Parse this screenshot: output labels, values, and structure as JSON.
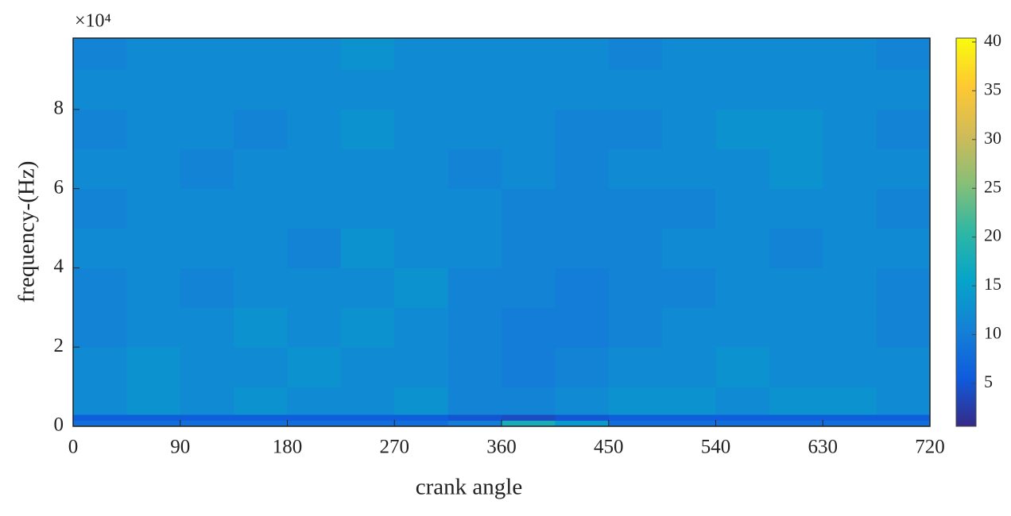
{
  "chart_data": {
    "type": "heatmap",
    "x_label": "crank angle",
    "y_label": "frequency-(Hz)",
    "y_exponent_label": "×10⁴",
    "xbins": [
      0,
      45,
      90,
      135,
      180,
      225,
      270,
      315,
      360,
      405,
      450,
      495,
      540,
      585,
      630,
      675,
      720
    ],
    "ybins": [
      0,
      1500,
      3000,
      10000,
      20000,
      30000,
      40000,
      50000,
      60000,
      70000,
      80000,
      90000,
      98000
    ],
    "z": [
      [
        8,
        8,
        8,
        8,
        8,
        8,
        8,
        10,
        18,
        14,
        8,
        8,
        8,
        8,
        8,
        8
      ],
      [
        6,
        6,
        6,
        6,
        6,
        6,
        6,
        5,
        4,
        5,
        6,
        6,
        6,
        6,
        6,
        6
      ],
      [
        12,
        13,
        12,
        13,
        12,
        12,
        13,
        11,
        11,
        12,
        13,
        13,
        12,
        13,
        13,
        12
      ],
      [
        12,
        13,
        12,
        12,
        13,
        12,
        12,
        11,
        10,
        11,
        12,
        12,
        13,
        12,
        12,
        12
      ],
      [
        11,
        12,
        12,
        13,
        12,
        13,
        12,
        11,
        10,
        10,
        11,
        12,
        12,
        12,
        12,
        11
      ],
      [
        11,
        12,
        11,
        12,
        12,
        12,
        13,
        11,
        11,
        10,
        11,
        11,
        12,
        12,
        12,
        11
      ],
      [
        12,
        12,
        12,
        12,
        11,
        13,
        12,
        12,
        11,
        11,
        11,
        12,
        12,
        11,
        12,
        12
      ],
      [
        11,
        12,
        12,
        12,
        12,
        12,
        12,
        12,
        11,
        11,
        11,
        11,
        12,
        12,
        12,
        11
      ],
      [
        12,
        12,
        11,
        12,
        12,
        12,
        12,
        11,
        12,
        11,
        12,
        12,
        12,
        13,
        12,
        12
      ],
      [
        11,
        12,
        12,
        11,
        12,
        13,
        12,
        12,
        12,
        11,
        11,
        12,
        13,
        13,
        12,
        11
      ],
      [
        12,
        12,
        12,
        12,
        12,
        12,
        12,
        12,
        12,
        12,
        12,
        12,
        12,
        12,
        12,
        12
      ],
      [
        11,
        12,
        12,
        12,
        12,
        13,
        12,
        12,
        12,
        12,
        11,
        12,
        12,
        12,
        12,
        11
      ]
    ],
    "xlim": [
      0,
      720
    ],
    "xticks": [
      0,
      90,
      180,
      270,
      360,
      450,
      540,
      630,
      720
    ],
    "ylim": [
      0,
      98000
    ],
    "yticks": [
      {
        "value": 0,
        "label": "0"
      },
      {
        "value": 20000,
        "label": "2"
      },
      {
        "value": 40000,
        "label": "4"
      },
      {
        "value": 60000,
        "label": "6"
      },
      {
        "value": 80000,
        "label": "8"
      }
    ],
    "clim": [
      0.6,
      40.4
    ],
    "cticks": [
      5,
      10,
      15,
      20,
      25,
      30,
      35,
      40
    ],
    "colormap": [
      "#352a87",
      "#0f5cdd",
      "#1481d6",
      "#06a4ca",
      "#2eb7a4",
      "#87bf77",
      "#d1bb59",
      "#fec832",
      "#f9fb0e"
    ]
  }
}
